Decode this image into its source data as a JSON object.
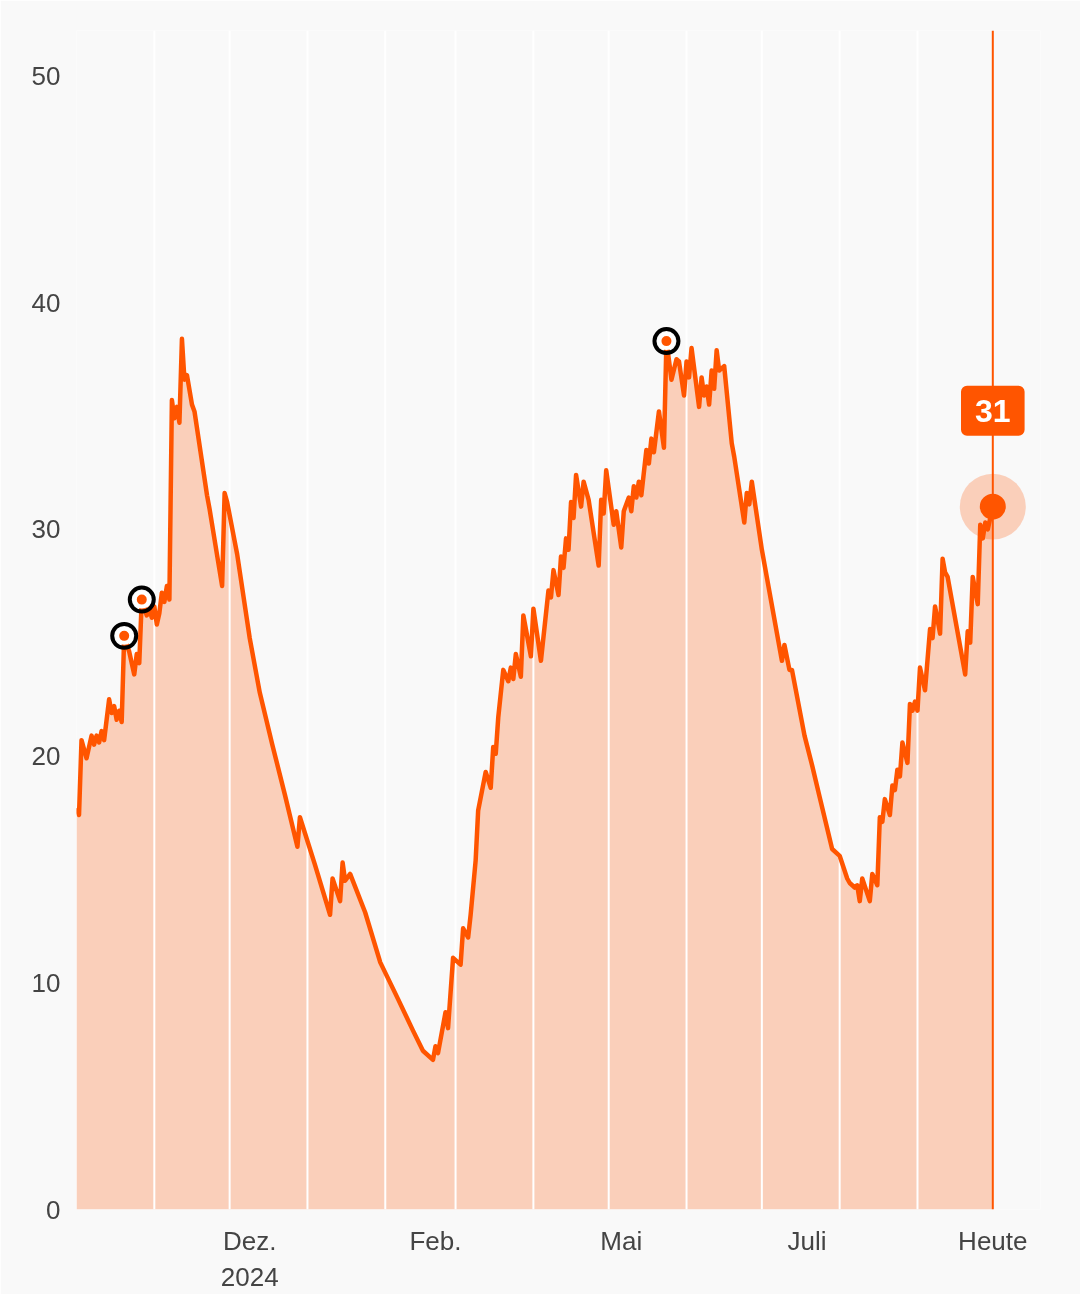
{
  "chart_data": {
    "type": "area",
    "x": [
      "2024-10-01",
      "2024-10-02",
      "2024-10-03",
      "2024-10-05",
      "2024-10-07",
      "2024-10-08",
      "2024-10-09",
      "2024-10-10",
      "2024-10-11",
      "2024-10-12",
      "2024-10-14",
      "2024-10-15",
      "2024-10-16",
      "2024-10-17",
      "2024-10-18",
      "2024-10-19",
      "2024-10-20",
      "2024-10-22",
      "2024-10-24",
      "2024-10-25",
      "2024-10-26",
      "2024-10-27",
      "2024-10-29",
      "2024-10-30",
      "2024-10-31",
      "2024-11-01",
      "2024-11-02",
      "2024-11-03",
      "2024-11-04",
      "2024-11-05",
      "2024-11-06",
      "2024-11-07",
      "2024-11-08",
      "2024-11-09",
      "2024-11-10",
      "2024-11-11",
      "2024-11-12",
      "2024-11-13",
      "2024-11-14",
      "2024-11-16",
      "2024-11-17",
      "2024-11-22",
      "2024-11-23",
      "2024-11-28",
      "2024-11-29",
      "2024-11-30",
      "2024-12-04",
      "2024-12-09",
      "2024-12-13",
      "2024-12-18",
      "2024-12-23",
      "2024-12-28",
      "2024-12-29",
      "2025-01-04",
      "2025-01-10",
      "2025-01-11",
      "2025-01-14",
      "2025-01-15",
      "2025-01-16",
      "2025-01-18",
      "2025-01-24",
      "2025-01-30",
      "2025-02-06",
      "2025-02-12",
      "2025-02-16",
      "2025-02-20",
      "2025-02-21",
      "2025-02-22",
      "2025-02-25",
      "2025-02-26",
      "2025-02-28",
      "2025-03-03",
      "2025-03-04",
      "2025-03-06",
      "2025-03-07",
      "2025-03-09",
      "2025-03-10",
      "2025-03-13",
      "2025-03-15",
      "2025-03-16",
      "2025-03-17",
      "2025-03-18",
      "2025-03-20",
      "2025-03-22",
      "2025-03-23",
      "2025-03-24",
      "2025-03-25",
      "2025-03-27",
      "2025-03-28",
      "2025-03-31",
      "2025-04-01",
      "2025-04-04",
      "2025-04-07",
      "2025-04-08",
      "2025-04-09",
      "2025-04-11",
      "2025-04-12",
      "2025-04-13",
      "2025-04-14",
      "2025-04-15",
      "2025-04-16",
      "2025-04-17",
      "2025-04-18",
      "2025-04-20",
      "2025-04-21",
      "2025-04-23",
      "2025-04-27",
      "2025-04-28",
      "2025-04-29",
      "2025-04-30",
      "2025-05-03",
      "2025-05-04",
      "2025-05-06",
      "2025-05-07",
      "2025-05-09",
      "2025-05-10",
      "2025-05-11",
      "2025-05-12",
      "2025-05-13",
      "2025-05-14",
      "2025-05-16",
      "2025-05-17",
      "2025-05-18",
      "2025-05-19",
      "2025-05-21",
      "2025-05-23",
      "2025-05-24",
      "2025-05-26",
      "2025-05-28",
      "2025-05-29",
      "2025-05-31",
      "2025-06-01",
      "2025-06-02",
      "2025-06-03",
      "2025-06-06",
      "2025-06-07",
      "2025-06-08",
      "2025-06-09",
      "2025-06-10",
      "2025-06-11",
      "2025-06-12",
      "2025-06-13",
      "2025-06-14",
      "2025-06-16",
      "2025-06-19",
      "2025-06-20",
      "2025-06-24",
      "2025-06-25",
      "2025-06-26",
      "2025-06-27",
      "2025-07-01",
      "2025-07-09",
      "2025-07-10",
      "2025-07-12",
      "2025-07-13",
      "2025-07-18",
      "2025-07-21",
      "2025-07-24",
      "2025-07-29",
      "2025-08-01",
      "2025-08-04",
      "2025-08-05",
      "2025-08-07",
      "2025-08-08",
      "2025-08-09",
      "2025-08-10",
      "2025-08-13",
      "2025-08-14",
      "2025-08-16",
      "2025-08-17",
      "2025-08-18",
      "2025-08-19",
      "2025-08-21",
      "2025-08-22",
      "2025-08-23",
      "2025-08-24",
      "2025-08-25",
      "2025-08-26",
      "2025-08-28",
      "2025-08-29",
      "2025-08-30",
      "2025-08-31",
      "2025-09-01",
      "2025-09-02",
      "2025-09-04",
      "2025-09-06",
      "2025-09-07",
      "2025-09-08",
      "2025-09-10",
      "2025-09-11",
      "2025-09-12",
      "2025-09-13",
      "2025-09-20",
      "2025-09-21",
      "2025-09-22",
      "2025-09-23",
      "2025-09-25",
      "2025-09-26",
      "2025-09-27",
      "2025-09-28",
      "2025-09-29",
      "2025-10-01"
    ],
    "series": [
      {
        "color": "#ff5500",
        "values": [
          17.7,
          17.4,
          20.7,
          19.9,
          20.9,
          20.5,
          20.9,
          20.6,
          21.1,
          20.7,
          22.5,
          21.9,
          22.2,
          21.6,
          22.0,
          21.5,
          25.3,
          24.6,
          23.6,
          24.5,
          24.1,
          26.9,
          26.2,
          26.5,
          26.1,
          26.6,
          25.8,
          26.3,
          27.2,
          26.8,
          27.5,
          26.9,
          35.7,
          34.9,
          35.4,
          34.7,
          38.4,
          36.6,
          36.8,
          35.5,
          35.2,
          31.5,
          30.9,
          27.5,
          31.6,
          31.2,
          28.9,
          25.2,
          22.8,
          20.5,
          18.3,
          16.0,
          17.3,
          15.2,
          13.0,
          14.6,
          13.6,
          15.3,
          14.5,
          14.8,
          13.1,
          10.9,
          9.3,
          7.9,
          7.0,
          6.6,
          7.2,
          6.9,
          8.7,
          8.0,
          11.1,
          10.8,
          12.4,
          12.0,
          13.0,
          15.4,
          17.6,
          19.3,
          18.6,
          20.4,
          20.1,
          21.7,
          23.8,
          23.3,
          23.9,
          23.4,
          24.5,
          23.5,
          26.2,
          24.4,
          26.5,
          24.2,
          27.3,
          27.0,
          28.2,
          27.1,
          28.8,
          28.3,
          29.6,
          29.1,
          31.2,
          30.5,
          32.4,
          31.0,
          32.1,
          31.3,
          28.4,
          31.3,
          30.7,
          32.6,
          30.2,
          30.8,
          29.2,
          30.8,
          31.4,
          30.8,
          31.9,
          31.4,
          32.1,
          31.5,
          33.5,
          32.9,
          34.0,
          33.4,
          35.2,
          33.6,
          38.3,
          36.6,
          37.5,
          37.4,
          35.9,
          37.4,
          36.7,
          38.0,
          35.4,
          36.7,
          35.9,
          36.3,
          35.5,
          37.0,
          36.2,
          37.9,
          37.0,
          37.2,
          33.8,
          33.2,
          30.3,
          31.6,
          31.1,
          32.1,
          29.1,
          24.2,
          24.9,
          23.8,
          23.8,
          20.9,
          19.6,
          18.2,
          15.9,
          15.6,
          14.6,
          14.4,
          14.2,
          14.3,
          13.6,
          14.6,
          13.6,
          14.8,
          14.3,
          17.3,
          17.1,
          18.1,
          17.4,
          18.7,
          18.5,
          19.4,
          19.1,
          20.6,
          19.7,
          22.3,
          22.0,
          22.4,
          22.0,
          23.9,
          22.9,
          25.6,
          25.2,
          26.6,
          25.4,
          28.7,
          28.1,
          27.9,
          23.6,
          25.5,
          25.0,
          27.9,
          26.7,
          30.2,
          29.6,
          30.3,
          30.0,
          31
        ]
      },
      {
        "type": "scatter",
        "color": "#000000",
        "marker": "circle",
        "x": [
          "2024-10-20",
          "2024-10-27",
          "2025-05-24"
        ],
        "values": [
          25.3,
          26.9,
          38.3
        ]
      }
    ],
    "xlim": [
      "2024-10-01",
      "2025-10-20"
    ],
    "xticks": [
      {
        "value": "2024-12-09",
        "label": "Dez.\n2024"
      },
      {
        "value": "2025-02-21",
        "label": "Feb."
      },
      {
        "value": "2025-05-06",
        "label": "Mai"
      },
      {
        "value": "2025-07-19",
        "label": "Juli"
      },
      {
        "value": "2025-10-01",
        "label": "Heute"
      }
    ],
    "ylim": [
      0,
      52
    ],
    "yticks": [
      0,
      10,
      20,
      30,
      40,
      50
    ],
    "ref_lines": [
      {
        "axis": "x",
        "value": "2024-11-01",
        "color": "#ffffff"
      },
      {
        "axis": "x",
        "value": "2024-12-01",
        "color": "#ffffff"
      },
      {
        "axis": "x",
        "value": "2025-01-01",
        "color": "#ffffff"
      },
      {
        "axis": "x",
        "value": "2025-02-01",
        "color": "#ffffff"
      },
      {
        "axis": "x",
        "value": "2025-03-01",
        "color": "#ffffff"
      },
      {
        "axis": "x",
        "value": "2025-04-01",
        "color": "#ffffff"
      },
      {
        "axis": "x",
        "value": "2025-05-01",
        "color": "#ffffff"
      },
      {
        "axis": "x",
        "value": "2025-06-01",
        "color": "#ffffff"
      },
      {
        "axis": "x",
        "value": "2025-07-01",
        "color": "#ffffff"
      },
      {
        "axis": "x",
        "value": "2025-08-01",
        "color": "#ffffff"
      },
      {
        "axis": "x",
        "value": "2025-09-01",
        "color": "#ffffff"
      },
      {
        "axis": "x",
        "value": "2025-10-01",
        "color": "#ff5500"
      }
    ],
    "annotations": [
      {
        "text": "31",
        "x": "2025-10-01",
        "y": 31
      }
    ]
  }
}
